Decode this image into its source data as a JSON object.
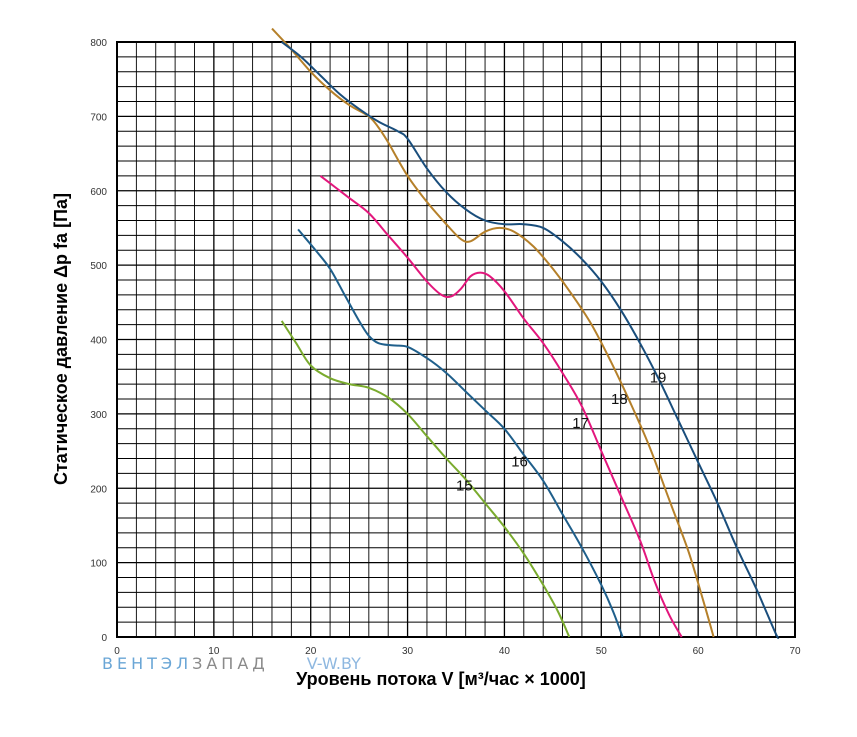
{
  "chart_data": {
    "type": "line",
    "xlabel": "Уровень потока V [м³/час × 1000]",
    "ylabel": "Статическое давление Δp fa [Па]",
    "xlim": [
      0,
      70
    ],
    "ylim": [
      0,
      800
    ],
    "x_ticks": [
      "0",
      "10",
      "20",
      "30",
      "40",
      "50",
      "60",
      "70"
    ],
    "y_ticks": [
      "0",
      "100",
      "200",
      "300",
      "400",
      "500",
      "600",
      "700",
      "800"
    ],
    "grid": true,
    "series": [
      {
        "name": "15",
        "color": "#7aab2e",
        "points": [
          [
            17,
            425
          ],
          [
            18.5,
            395
          ],
          [
            20,
            365
          ],
          [
            22,
            348
          ],
          [
            24,
            340
          ],
          [
            26,
            335
          ],
          [
            28,
            322
          ],
          [
            30,
            300
          ],
          [
            32,
            270
          ],
          [
            34,
            240
          ],
          [
            36,
            212
          ],
          [
            38,
            180
          ],
          [
            40,
            148
          ],
          [
            42,
            112
          ],
          [
            44,
            70
          ],
          [
            45.5,
            35
          ],
          [
            46.7,
            0
          ]
        ]
      },
      {
        "name": "16",
        "color": "#1f5f8b",
        "points": [
          [
            18.7,
            548
          ],
          [
            20.5,
            520
          ],
          [
            22,
            495
          ],
          [
            23.5,
            460
          ],
          [
            25,
            425
          ],
          [
            26,
            405
          ],
          [
            27,
            395
          ],
          [
            28.5,
            392
          ],
          [
            30,
            390
          ],
          [
            32,
            375
          ],
          [
            34,
            355
          ],
          [
            36,
            330
          ],
          [
            38,
            305
          ],
          [
            40,
            280
          ],
          [
            42,
            245
          ],
          [
            44,
            210
          ],
          [
            46,
            165
          ],
          [
            48,
            120
          ],
          [
            50,
            70
          ],
          [
            51.2,
            35
          ],
          [
            52.2,
            0
          ]
        ]
      },
      {
        "name": "17",
        "color": "#e3177d",
        "points": [
          [
            21,
            620
          ],
          [
            22.5,
            605
          ],
          [
            24,
            590
          ],
          [
            26,
            570
          ],
          [
            28,
            540
          ],
          [
            30,
            510
          ],
          [
            32,
            478
          ],
          [
            33.5,
            460
          ],
          [
            34.5,
            458
          ],
          [
            35.5,
            468
          ],
          [
            36.5,
            485
          ],
          [
            37.5,
            490
          ],
          [
            38.5,
            485
          ],
          [
            40,
            465
          ],
          [
            42,
            428
          ],
          [
            44,
            395
          ],
          [
            46,
            355
          ],
          [
            48,
            310
          ],
          [
            50,
            250
          ],
          [
            52,
            190
          ],
          [
            54,
            130
          ],
          [
            55.5,
            75
          ],
          [
            57,
            30
          ],
          [
            58.3,
            0
          ]
        ]
      },
      {
        "name": "18",
        "color": "#b5802a",
        "points": [
          [
            16,
            818
          ],
          [
            18,
            790
          ],
          [
            20,
            760
          ],
          [
            22,
            735
          ],
          [
            24,
            715
          ],
          [
            26,
            700
          ],
          [
            27,
            685
          ],
          [
            28,
            665
          ],
          [
            30,
            620
          ],
          [
            32,
            585
          ],
          [
            34,
            555
          ],
          [
            35.5,
            535
          ],
          [
            36.5,
            532
          ],
          [
            38,
            545
          ],
          [
            39.5,
            550
          ],
          [
            41,
            545
          ],
          [
            43,
            525
          ],
          [
            45,
            495
          ],
          [
            47,
            460
          ],
          [
            49,
            420
          ],
          [
            51,
            370
          ],
          [
            53,
            315
          ],
          [
            55,
            255
          ],
          [
            57,
            185
          ],
          [
            59,
            115
          ],
          [
            60.5,
            50
          ],
          [
            61.6,
            0
          ]
        ]
      },
      {
        "name": "19",
        "color": "#1a4e7c",
        "points": [
          [
            17,
            800
          ],
          [
            19,
            780
          ],
          [
            21,
            755
          ],
          [
            23,
            730
          ],
          [
            25,
            710
          ],
          [
            27,
            693
          ],
          [
            29,
            680
          ],
          [
            30,
            670
          ],
          [
            32,
            630
          ],
          [
            34,
            598
          ],
          [
            36,
            575
          ],
          [
            38,
            560
          ],
          [
            40,
            555
          ],
          [
            42,
            555
          ],
          [
            44,
            550
          ],
          [
            46,
            532
          ],
          [
            48,
            508
          ],
          [
            50,
            478
          ],
          [
            52,
            440
          ],
          [
            54,
            395
          ],
          [
            56,
            345
          ],
          [
            58,
            290
          ],
          [
            60,
            235
          ],
          [
            62,
            180
          ],
          [
            64,
            120
          ],
          [
            66,
            65
          ],
          [
            68,
            5
          ],
          [
            68.3,
            0
          ]
        ]
      }
    ],
    "annotations": [
      {
        "text": "15",
        "x": 35,
        "y": 197
      },
      {
        "text": "16",
        "x": 40.7,
        "y": 229
      },
      {
        "text": "17",
        "x": 47,
        "y": 281
      },
      {
        "text": "18",
        "x": 51,
        "y": 313
      },
      {
        "text": "19",
        "x": 55,
        "y": 342
      }
    ]
  },
  "watermark": {
    "part1": "ВЕНТЭЛ",
    "part2": "ЗАПАД",
    "part3": "V-W.BY",
    "color1": "#6aa6d6",
    "color2": "#8a8a8a",
    "color3": "#8fb8e0"
  }
}
